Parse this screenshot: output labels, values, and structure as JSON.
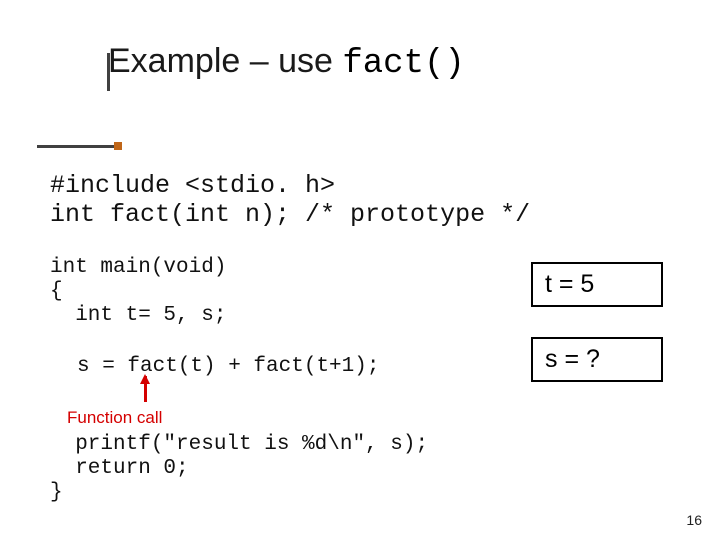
{
  "title": {
    "prefix": "Example – use ",
    "mono": "fact()"
  },
  "code": {
    "block1_line1": "#include <stdio. h>",
    "block1_line2": "int fact(int n); /* prototype */",
    "block2_line1": "int main(void)",
    "block2_line2": "{",
    "block2_line3": "  int t= 5, s;",
    "call_line": "s = fact(t) + fact(t+1);",
    "func_call_label": "Function call",
    "block4_line1": "  printf(\"result is %d\\n\", s);",
    "block4_line2": "  return 0;",
    "block4_line3": "}"
  },
  "boxes": {
    "t": "t = 5",
    "s": "s = ?"
  },
  "page_number": "16",
  "colors": {
    "accent_red": "#d40000",
    "title_dot": "#c06618",
    "text": "#111111"
  }
}
